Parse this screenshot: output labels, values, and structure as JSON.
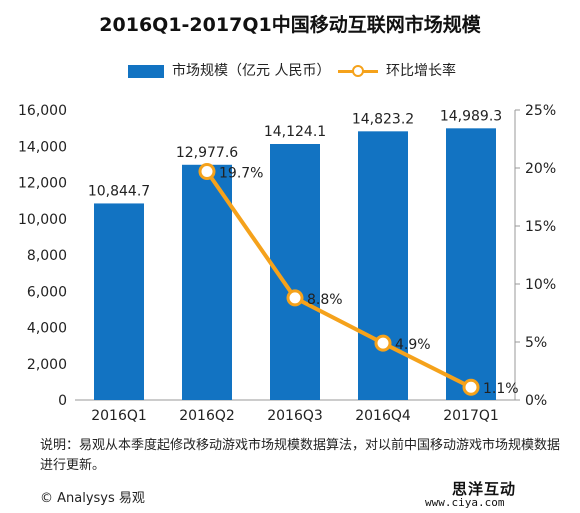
{
  "chart_data": {
    "type": "bar",
    "title": "2016Q1-2017Q1中国移动互联网市场规模",
    "categories": [
      "2016Q1",
      "2016Q2",
      "2016Q3",
      "2016Q4",
      "2017Q1"
    ],
    "series": [
      {
        "name": "市场规模（亿元 人民币）",
        "type": "bar",
        "axis": "left",
        "values": [
          10844.7,
          12977.6,
          14124.1,
          14823.2,
          14989.3
        ],
        "labels": [
          "10,844.7",
          "12,977.6",
          "14,124.1",
          "14,823.2",
          "14,989.3"
        ]
      },
      {
        "name": "环比增长率",
        "type": "line",
        "axis": "right",
        "values": [
          null,
          19.7,
          8.8,
          4.9,
          1.1
        ],
        "labels": [
          "",
          "19.7%",
          "8.8%",
          "4.9%",
          "1.1%"
        ]
      }
    ],
    "y_left": {
      "range": [
        0,
        16000
      ],
      "ticks": [
        0,
        2000,
        4000,
        6000,
        8000,
        10000,
        12000,
        14000,
        16000
      ],
      "tick_labels": [
        "0",
        "2,000",
        "4,000",
        "6,000",
        "8,000",
        "10,000",
        "12,000",
        "14,000",
        "16,000"
      ]
    },
    "y_right": {
      "range": [
        0,
        25
      ],
      "ticks": [
        0,
        5,
        10,
        15,
        20,
        25
      ],
      "tick_labels": [
        "0%",
        "5%",
        "10%",
        "15%",
        "20%",
        "25%"
      ]
    },
    "legend_position": "top",
    "grid": false,
    "colors": {
      "bar": "#1273c2",
      "line": "#f5a21b"
    }
  },
  "legend": {
    "bar_label": "市场规模（亿元 人民币）",
    "line_label": "环比增长率"
  },
  "footnote": "说明：易观从本季度起修改移动游戏市场规模数据算法，对以前中国移动游戏市场规模数据进行更新。",
  "copyright": "© Analysys 易观",
  "watermark": {
    "brand": "思洋互动",
    "url": "www.ciya.com"
  }
}
